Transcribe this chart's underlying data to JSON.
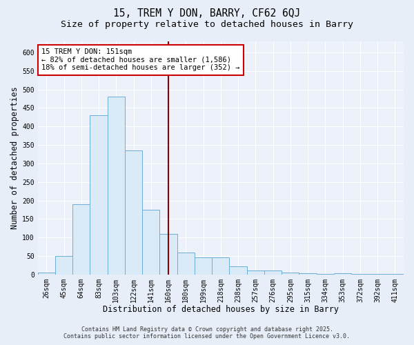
{
  "title": "15, TREM Y DON, BARRY, CF62 6QJ",
  "subtitle": "Size of property relative to detached houses in Barry",
  "xlabel": "Distribution of detached houses by size in Barry",
  "ylabel": "Number of detached properties",
  "categories": [
    "26sqm",
    "45sqm",
    "64sqm",
    "83sqm",
    "103sqm",
    "122sqm",
    "141sqm",
    "160sqm",
    "180sqm",
    "199sqm",
    "218sqm",
    "238sqm",
    "257sqm",
    "276sqm",
    "295sqm",
    "315sqm",
    "334sqm",
    "353sqm",
    "372sqm",
    "392sqm",
    "411sqm"
  ],
  "values": [
    5,
    50,
    190,
    430,
    480,
    335,
    175,
    110,
    60,
    47,
    47,
    22,
    10,
    10,
    5,
    3,
    2,
    3,
    2,
    1,
    2
  ],
  "bar_color": "#daeaf7",
  "bar_edge_color": "#6aaed6",
  "vline_color": "#8b0000",
  "annotation_title": "15 TREM Y DON: 151sqm",
  "annotation_left": "← 82% of detached houses are smaller (1,586)",
  "annotation_right": "18% of semi-detached houses are larger (352) →",
  "annotation_box_color": "#ffffff",
  "annotation_box_edge": "#cc0000",
  "ylim": [
    0,
    630
  ],
  "yticks": [
    0,
    50,
    100,
    150,
    200,
    250,
    300,
    350,
    400,
    450,
    500,
    550,
    600
  ],
  "background_color": "#e8eef8",
  "plot_bg_color": "#edf2fa",
  "grid_color": "#ffffff",
  "footer": "Contains HM Land Registry data © Crown copyright and database right 2025.\nContains public sector information licensed under the Open Government Licence v3.0.",
  "title_fontsize": 10.5,
  "subtitle_fontsize": 9.5,
  "axis_label_fontsize": 8.5,
  "tick_fontsize": 7,
  "annotation_fontsize": 7.5,
  "footer_fontsize": 6
}
